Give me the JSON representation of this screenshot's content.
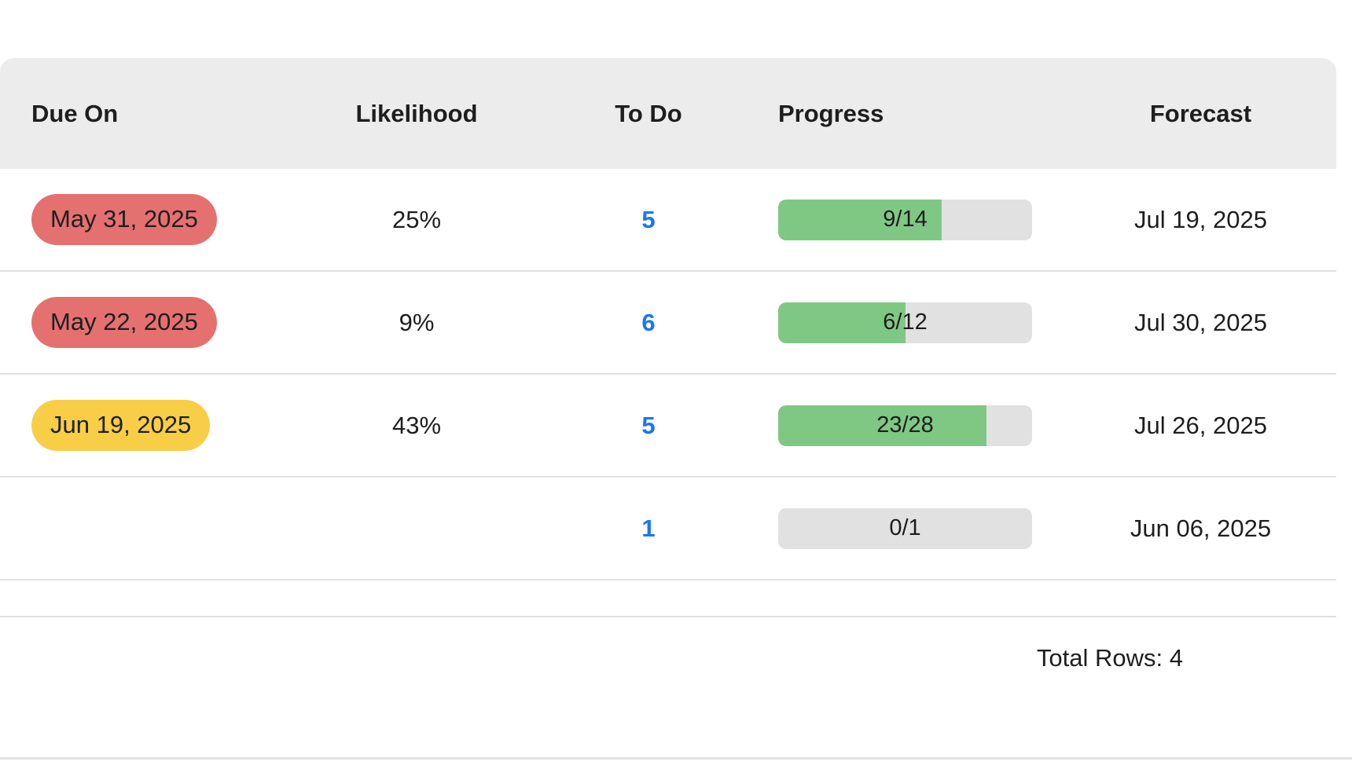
{
  "colors": {
    "header_bg": "#ececec",
    "divider": "#e0e0e0",
    "text": "#1e1e1e",
    "link_blue": "#1877f2",
    "pill_red": "#e57070",
    "pill_yellow": "#f8ce46",
    "progress_green": "#7fc884",
    "progress_track": "#e1e1e1"
  },
  "table": {
    "headers": {
      "due_on": "Due On",
      "likelihood": "Likelihood",
      "todo": "To Do",
      "progress": "Progress",
      "forecast": "Forecast"
    },
    "rows": [
      {
        "due_on": "May 31, 2025",
        "due_status": "overdue",
        "likelihood": "25%",
        "todo": "5",
        "progress_label": "9/14",
        "progress_pct": 64.3,
        "forecast": "Jul 19, 2025"
      },
      {
        "due_on": "May 22, 2025",
        "due_status": "overdue",
        "likelihood": "9%",
        "todo": "6",
        "progress_label": "6/12",
        "progress_pct": 50,
        "forecast": "Jul 30, 2025"
      },
      {
        "due_on": "Jun 19, 2025",
        "due_status": "due-soon",
        "likelihood": "43%",
        "todo": "5",
        "progress_label": "23/28",
        "progress_pct": 82.1,
        "forecast": "Jul 26, 2025"
      },
      {
        "due_on": "",
        "due_status": "",
        "likelihood": "",
        "todo": "1",
        "progress_label": "0/1",
        "progress_pct": 0,
        "forecast": "Jun 06, 2025"
      }
    ],
    "footer": {
      "total_rows_label": "Total Rows: 4"
    }
  }
}
